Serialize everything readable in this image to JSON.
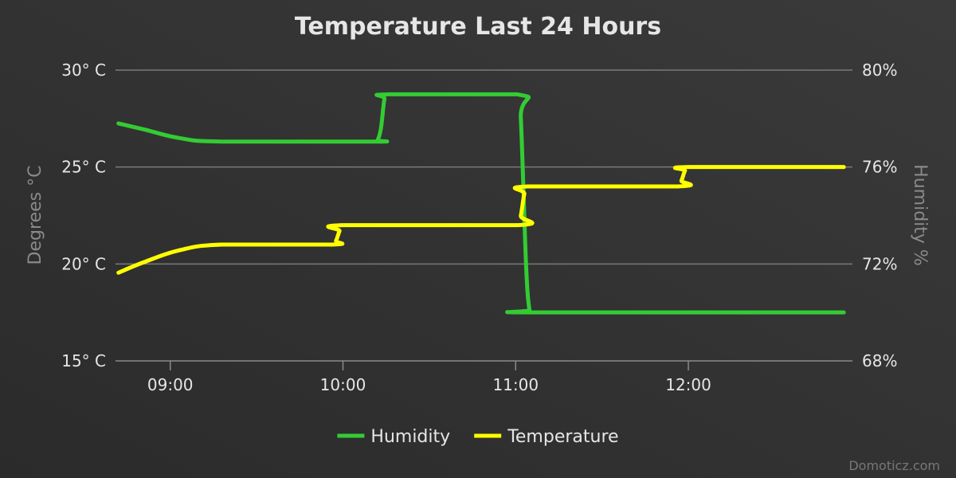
{
  "chart_data": {
    "type": "line",
    "title": "Temperature Last 24 Hours",
    "credit": "Domoticz.com",
    "legend_position": "bottom-center",
    "grid": true,
    "x_axis": {
      "unit": "hour",
      "range": [
        8.683,
        12.95
      ],
      "ticks": [
        {
          "value": 9,
          "label": "09:00"
        },
        {
          "value": 10,
          "label": "10:00"
        },
        {
          "value": 11,
          "label": "11:00"
        },
        {
          "value": 12,
          "label": "12:00"
        }
      ]
    },
    "y_axes": [
      {
        "id": "temperature",
        "side": "left",
        "title": "Degrees °C",
        "range": [
          15,
          30
        ],
        "ticks": [
          {
            "value": 30,
            "label": "30° C"
          },
          {
            "value": 25,
            "label": "25° C"
          },
          {
            "value": 20,
            "label": "20° C"
          },
          {
            "value": 15,
            "label": "15° C"
          }
        ]
      },
      {
        "id": "humidity",
        "side": "right",
        "title": "Humidity %",
        "range": [
          68,
          80
        ],
        "ticks": [
          {
            "value": 80,
            "label": "80%"
          },
          {
            "value": 76,
            "label": "76%"
          },
          {
            "value": 72,
            "label": "72%"
          },
          {
            "value": 68,
            "label": "68%"
          }
        ]
      }
    ],
    "series": [
      {
        "name": "Humidity",
        "axis": "humidity",
        "color": "#33cc33",
        "points": [
          [
            8.7,
            77.8
          ],
          [
            8.85,
            77.55
          ],
          [
            9.05,
            77.2
          ],
          [
            9.3,
            77.05
          ],
          [
            10.18,
            77.05
          ],
          [
            10.2,
            77.1
          ],
          [
            10.22,
            77.6
          ],
          [
            10.24,
            78.8
          ],
          [
            10.26,
            79.0
          ],
          [
            11.01,
            79.0
          ],
          [
            11.03,
            78.0
          ],
          [
            11.06,
            72.0
          ],
          [
            11.08,
            70.1
          ],
          [
            11.1,
            70.0
          ],
          [
            12.9,
            70.0
          ]
        ]
      },
      {
        "name": "Temperature",
        "axis": "temperature",
        "color": "#ffff00",
        "points": [
          [
            8.7,
            19.55
          ],
          [
            8.85,
            20.1
          ],
          [
            9.05,
            20.7
          ],
          [
            9.3,
            21.0
          ],
          [
            9.94,
            21.0
          ],
          [
            9.96,
            21.2
          ],
          [
            9.98,
            21.7
          ],
          [
            10.0,
            22.0
          ],
          [
            11.01,
            22.0
          ],
          [
            11.03,
            22.5
          ],
          [
            11.05,
            23.6
          ],
          [
            11.07,
            24.0
          ],
          [
            11.94,
            24.0
          ],
          [
            11.96,
            24.3
          ],
          [
            11.98,
            24.8
          ],
          [
            12.0,
            25.0
          ],
          [
            12.9,
            25.0
          ]
        ]
      }
    ]
  }
}
